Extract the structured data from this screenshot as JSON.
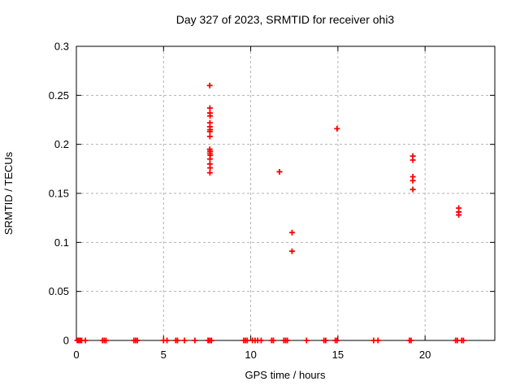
{
  "chart_data": {
    "type": "scatter",
    "title": "Day 327 of 2023, SRMTID for receiver ohi3",
    "xlabel": "GPS time / hours",
    "ylabel": "SRMTID / TECUs",
    "xlim": [
      0,
      24
    ],
    "ylim": [
      0,
      0.3
    ],
    "xticks": [
      0,
      5,
      10,
      15,
      20
    ],
    "xtick_labels": [
      "0",
      "5",
      "10",
      "15",
      "20"
    ],
    "yticks": [
      0,
      0.05,
      0.1,
      0.15,
      0.2,
      0.25,
      0.3
    ],
    "ytick_labels": [
      "0",
      "0.05",
      "0.1",
      "0.15",
      "0.2",
      "0.25",
      "0.3"
    ],
    "grid": true,
    "legend": "none",
    "marker": {
      "shape": "plus",
      "color": "#ff0000",
      "size": 7
    },
    "series": [
      {
        "name": "SRMTID",
        "points": [
          [
            7.65,
            0.26
          ],
          [
            7.66,
            0.237
          ],
          [
            7.66,
            0.232
          ],
          [
            7.67,
            0.229
          ],
          [
            7.66,
            0.222
          ],
          [
            7.66,
            0.218
          ],
          [
            7.67,
            0.215
          ],
          [
            7.66,
            0.213
          ],
          [
            7.66,
            0.208
          ],
          [
            7.65,
            0.195
          ],
          [
            7.67,
            0.193
          ],
          [
            7.66,
            0.191
          ],
          [
            7.68,
            0.189
          ],
          [
            7.66,
            0.185
          ],
          [
            7.66,
            0.18
          ],
          [
            7.67,
            0.176
          ],
          [
            7.66,
            0.171
          ],
          [
            11.65,
            0.172
          ],
          [
            12.37,
            0.11
          ],
          [
            12.37,
            0.091
          ],
          [
            14.95,
            0.216
          ],
          [
            19.3,
            0.188
          ],
          [
            19.3,
            0.184
          ],
          [
            19.3,
            0.167
          ],
          [
            19.3,
            0.163
          ],
          [
            19.3,
            0.154
          ],
          [
            21.93,
            0.135
          ],
          [
            21.93,
            0.131
          ],
          [
            21.93,
            0.128
          ],
          [
            0.05,
            0
          ],
          [
            0.1,
            0
          ],
          [
            0.15,
            0
          ],
          [
            0.2,
            0
          ],
          [
            0.25,
            0
          ],
          [
            0.3,
            0
          ],
          [
            0.52,
            0
          ],
          [
            1.5,
            0
          ],
          [
            1.6,
            0
          ],
          [
            1.7,
            0
          ],
          [
            3.3,
            0
          ],
          [
            3.4,
            0
          ],
          [
            3.5,
            0
          ],
          [
            5.0,
            0
          ],
          [
            5.2,
            0
          ],
          [
            5.7,
            0
          ],
          [
            5.8,
            0
          ],
          [
            6.2,
            0
          ],
          [
            6.8,
            0
          ],
          [
            7.55,
            0
          ],
          [
            7.6,
            0
          ],
          [
            7.7,
            0
          ],
          [
            7.75,
            0
          ],
          [
            9.6,
            0
          ],
          [
            9.7,
            0
          ],
          [
            9.8,
            0
          ],
          [
            10.1,
            0
          ],
          [
            10.25,
            0
          ],
          [
            10.4,
            0
          ],
          [
            10.6,
            0
          ],
          [
            11.2,
            0
          ],
          [
            11.3,
            0
          ],
          [
            11.9,
            0
          ],
          [
            12.0,
            0
          ],
          [
            12.1,
            0
          ],
          [
            13.2,
            0
          ],
          [
            14.2,
            0
          ],
          [
            14.3,
            0
          ],
          [
            14.85,
            0
          ],
          [
            14.95,
            0
          ],
          [
            17.05,
            0
          ],
          [
            17.3,
            0
          ],
          [
            19.1,
            0
          ],
          [
            19.2,
            0
          ],
          [
            21.75,
            0
          ],
          [
            21.85,
            0
          ],
          [
            22.1,
            0
          ],
          [
            22.2,
            0
          ]
        ]
      }
    ]
  }
}
